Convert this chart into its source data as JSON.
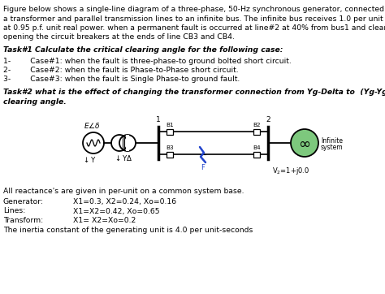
{
  "title_text1": "Figure below shows a single-line diagram of a three-phase, 50-Hz synchronous generator, connected through",
  "title_text2": "a transformer and parallel transmission lines to an infinite bus. The infinite bus receives 1.0 per unit real power",
  "title_text3": "at 0.95 p.f. unit real power. when a permanent fault is occurred at line#2 at 40% from bus1 and cleared by",
  "title_text4": "opening the circuit breakers at the ends of line CB3 and CB4.",
  "task1_header": "Task#1 Calculate the critical clearing angle for the following case:",
  "task1_item1": "1-        Case#1: when the fault is three-phase-to ground bolted short circuit.",
  "task1_item2": "2-        Case#2: when the fault is Phase-to-Phase short circuit.",
  "task1_item3": "3-        Case#3: when the fault is Single Phase-to ground fault.",
  "task2_line1": "Task#2 what is the effect of changing the transformer connection from Yg-Delta to  (Yg-Yg) on critical",
  "task2_line2": "clearing angle.",
  "footer": "All reactance's are given in per-unit on a common system base.",
  "gen_label": "X1=0.3, X2=0.24, Xo=0.16",
  "lines_label": "X1=X2=0.42, Xo=0.65",
  "trans_label": "X1= X2=Xo=0.2",
  "inertia": "The inertia constant of the generating unit is 4.0 per unit-seconds",
  "bg_color": "#ffffff",
  "text_color": "#000000",
  "green_color": "#7dc87d"
}
